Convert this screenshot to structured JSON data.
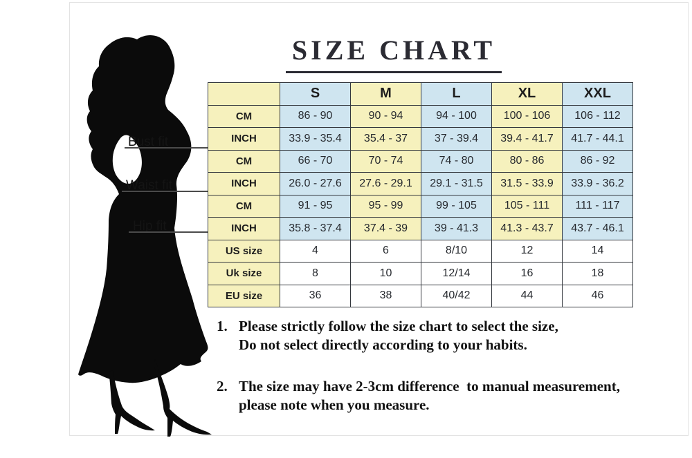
{
  "title": {
    "text": "SIZE CHART"
  },
  "figure": {
    "silhouette_icon": "woman-silhouette-icon",
    "bust_label": "Bust fit",
    "waist_label": "Waist fit",
    "hip_label": "Hip fit"
  },
  "table": {
    "size_headers": [
      "",
      "S",
      "M",
      "L",
      "XL",
      "XXL"
    ],
    "rows": [
      {
        "measure": "Bust fit",
        "label": "CM",
        "colored": true,
        "values": [
          "86 - 90",
          "90 - 94",
          "94 - 100",
          "100 - 106",
          "106 - 112"
        ]
      },
      {
        "measure": "Bust fit",
        "label": "INCH",
        "colored": true,
        "values": [
          "33.9 - 35.4",
          "35.4 - 37",
          "37 - 39.4",
          "39.4 - 41.7",
          "41.7 - 44.1"
        ]
      },
      {
        "measure": "Waist fit",
        "label": "CM",
        "colored": true,
        "values": [
          "66 - 70",
          "70 - 74",
          "74 - 80",
          "80 - 86",
          "86 - 92"
        ]
      },
      {
        "measure": "Waist fit",
        "label": "INCH",
        "colored": true,
        "values": [
          "26.0 - 27.6",
          "27.6 - 29.1",
          "29.1 - 31.5",
          "31.5 - 33.9",
          "33.9 - 36.2"
        ]
      },
      {
        "measure": "Hip fit",
        "label": "CM",
        "colored": true,
        "values": [
          "91 - 95",
          "95 - 99",
          "99 - 105",
          "105 - 111",
          "111 - 117"
        ]
      },
      {
        "measure": "Hip fit",
        "label": "INCH",
        "colored": true,
        "values": [
          "35.8 - 37.4",
          "37.4 - 39",
          "39 - 41.3",
          "41.3 - 43.7",
          "43.7 - 46.1"
        ]
      },
      {
        "measure": "",
        "label": "US size",
        "colored": false,
        "values": [
          "4",
          "6",
          "8/10",
          "12",
          "14"
        ]
      },
      {
        "measure": "",
        "label": "Uk size",
        "colored": false,
        "values": [
          "8",
          "10",
          "12/14",
          "16",
          "18"
        ]
      },
      {
        "measure": "",
        "label": "EU size",
        "colored": false,
        "values": [
          "36",
          "38",
          "40/42",
          "44",
          "46"
        ]
      }
    ]
  },
  "notes": [
    {
      "number": "1.",
      "line1": "Please strictly follow the size chart to select the size,",
      "line2": "Do not select directly according to your habits."
    },
    {
      "number": "2.",
      "line1": "The size may have 2-3cm difference  to manual measurement,",
      "line2": "please note when you measure."
    }
  ],
  "colors": {
    "table_yellow": "#f6f1bd",
    "table_blue": "#cfe5f0",
    "table_border": "#33373d",
    "silhouette_black": "#0b0b0b",
    "frame_gray": "#e3e3e3"
  },
  "chart_data": {
    "type": "table",
    "title": "SIZE CHART",
    "columns": [
      "S",
      "M",
      "L",
      "XL",
      "XXL"
    ],
    "rows": [
      {
        "measure": "Bust fit",
        "unit": "CM",
        "values": [
          "86 - 90",
          "90 - 94",
          "94 - 100",
          "100 - 106",
          "106 - 112"
        ]
      },
      {
        "measure": "Bust fit",
        "unit": "INCH",
        "values": [
          "33.9 - 35.4",
          "35.4 - 37",
          "37 - 39.4",
          "39.4 - 41.7",
          "41.7 - 44.1"
        ]
      },
      {
        "measure": "Waist fit",
        "unit": "CM",
        "values": [
          "66 - 70",
          "70 - 74",
          "74 - 80",
          "80 - 86",
          "86 - 92"
        ]
      },
      {
        "measure": "Waist fit",
        "unit": "INCH",
        "values": [
          "26.0 - 27.6",
          "27.6 - 29.1",
          "29.1 - 31.5",
          "31.5 - 33.9",
          "33.9 - 36.2"
        ]
      },
      {
        "measure": "Hip fit",
        "unit": "CM",
        "values": [
          "91 - 95",
          "95 - 99",
          "99 - 105",
          "105 - 111",
          "111 - 117"
        ]
      },
      {
        "measure": "Hip fit",
        "unit": "INCH",
        "values": [
          "35.8 - 37.4",
          "37.4 - 39",
          "39 - 41.3",
          "41.3 - 43.7",
          "43.7 - 46.1"
        ]
      },
      {
        "measure": "US size",
        "unit": "",
        "values": [
          "4",
          "6",
          "8/10",
          "12",
          "14"
        ]
      },
      {
        "measure": "Uk size",
        "unit": "",
        "values": [
          "8",
          "10",
          "12/14",
          "16",
          "18"
        ]
      },
      {
        "measure": "EU size",
        "unit": "",
        "values": [
          "36",
          "38",
          "40/42",
          "44",
          "46"
        ]
      }
    ],
    "notes": [
      "1. Please strictly follow the size chart to select the size, Do not select directly according to your habits.",
      "2. The size may have 2-3cm difference to manual measurement, please note when you measure."
    ]
  }
}
